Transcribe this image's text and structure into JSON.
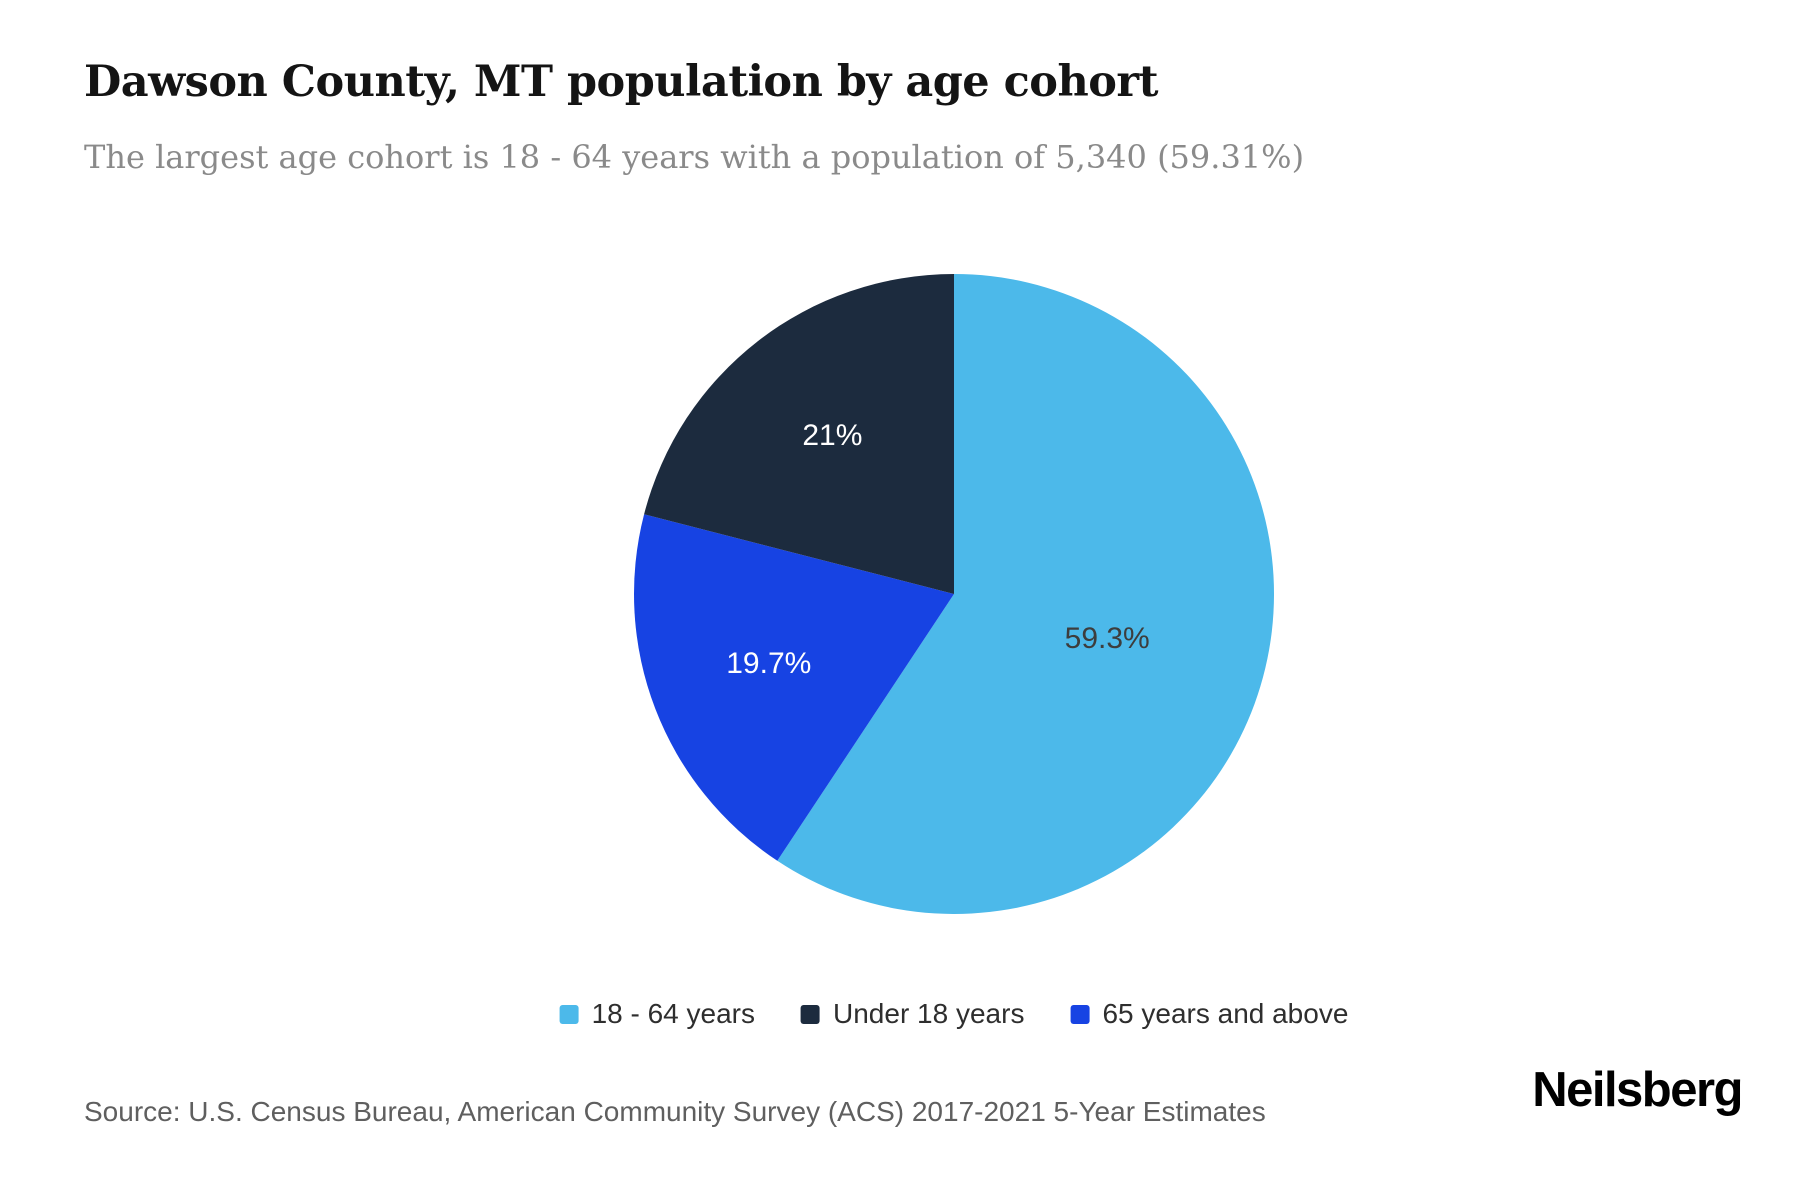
{
  "header": {
    "title": "Dawson County, MT population by age cohort",
    "subtitle": "The largest age cohort is 18 - 64 years with a population of 5,340 (59.31%)"
  },
  "chart_data": {
    "type": "pie",
    "title": "Dawson County, MT population by age cohort",
    "start_angle_deg": -90,
    "direction": "clockwise",
    "slices": [
      {
        "label": "18 - 64 years",
        "value": 59.31,
        "display": "59.3%",
        "color": "#4cb9ea",
        "text_color": "#3d3d3d"
      },
      {
        "label": "65 years and above",
        "value": 19.7,
        "display": "19.7%",
        "color": "#1743e3",
        "text_color": "#ffffff"
      },
      {
        "label": "Under 18 years",
        "value": 20.99,
        "display": "21%",
        "color": "#1c2b3e",
        "text_color": "#ffffff"
      }
    ],
    "legend_position": "bottom",
    "legend": [
      {
        "label": "18 - 64 years",
        "color": "#4cb9ea"
      },
      {
        "label": "Under 18 years",
        "color": "#1c2b3e"
      },
      {
        "label": "65 years and above",
        "color": "#1743e3"
      }
    ]
  },
  "footer": {
    "source": "Source: U.S. Census Bureau, American Community Survey (ACS) 2017-2021 5-Year Estimates",
    "brand": "Neilsberg"
  }
}
